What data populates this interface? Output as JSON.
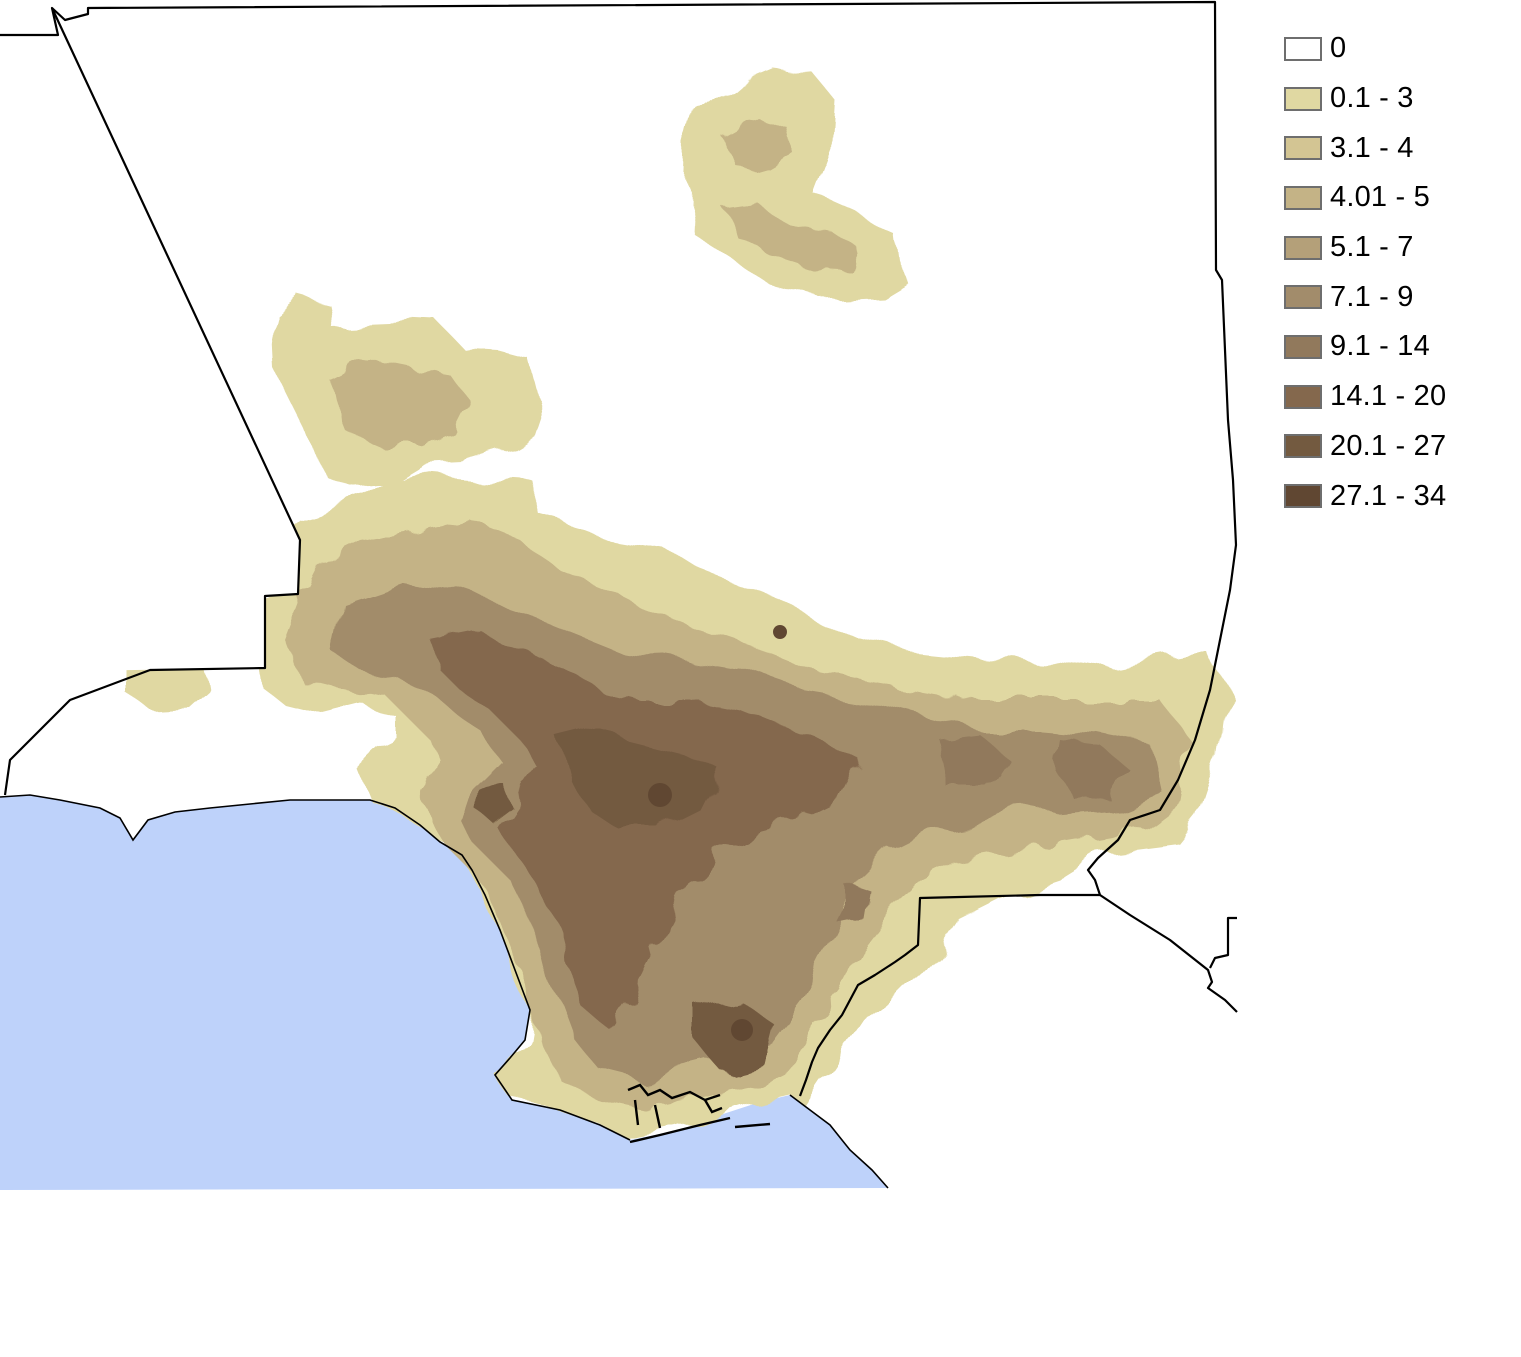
{
  "map": {
    "colors": {
      "ocean": "#bed2fa",
      "land": "#ffffff",
      "boundary": "#000000"
    }
  },
  "legend": {
    "items": [
      {
        "label": "0",
        "color": "#ffffff"
      },
      {
        "label": "0.1 - 3",
        "color": "#e0d8a2"
      },
      {
        "label": "3.1 - 4",
        "color": "#d3c593"
      },
      {
        "label": "4.01 - 5",
        "color": "#c4b386"
      },
      {
        "label": "5.1 - 7",
        "color": "#b4a079"
      },
      {
        "label": "7.1 - 9",
        "color": "#a28c6b"
      },
      {
        "label": "9.1 - 14",
        "color": "#91795c"
      },
      {
        "label": "14.1 - 20",
        "color": "#84684d"
      },
      {
        "label": "20.1 - 27",
        "color": "#735a40"
      },
      {
        "label": "27.1 - 34",
        "color": "#604732"
      }
    ]
  }
}
